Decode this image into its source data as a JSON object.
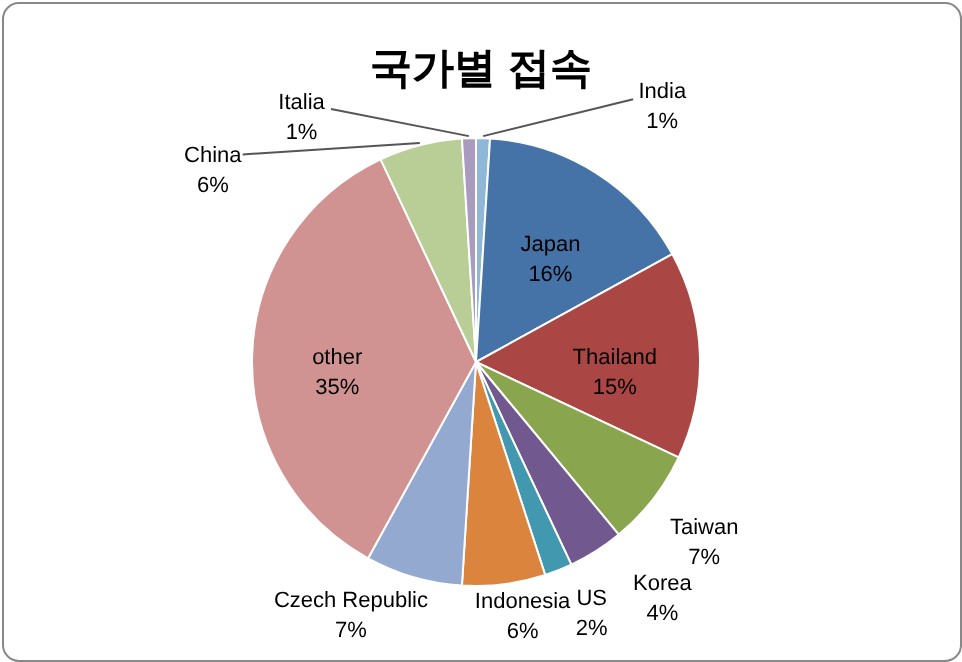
{
  "chart_data": {
    "type": "pie",
    "title": "국가별 접속",
    "categories": [
      "India",
      "Japan",
      "Thailand",
      "Taiwan",
      "Korea",
      "US",
      "Indonesia",
      "Czech Republic",
      "other",
      "China",
      "Italia"
    ],
    "values": [
      1,
      16,
      15,
      7,
      4,
      2,
      6,
      7,
      35,
      6,
      1
    ],
    "value_labels": [
      "1%",
      "16%",
      "15%",
      "7%",
      "4%",
      "2%",
      "6%",
      "7%",
      "35%",
      "6%",
      "1%"
    ],
    "colors": [
      "#8fb8d8",
      "#4572a7",
      "#aa4643",
      "#89a54e",
      "#71588f",
      "#4198af",
      "#db843d",
      "#93a9cf",
      "#d19392",
      "#b9cd96",
      "#a99bbd"
    ],
    "legend": false
  }
}
